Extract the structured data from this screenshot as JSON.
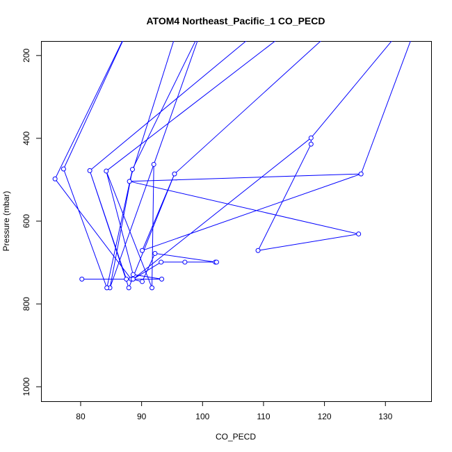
{
  "chart_data": {
    "type": "line",
    "title": "ATOM4 Northeast_Pacific_1 CO_PECD",
    "xlabel": "CO_PECD",
    "ylabel": "Pressure (mbar)",
    "xlim": [
      73.5,
      137.5
    ],
    "ylim": [
      1035,
      165
    ],
    "y_inverted": true,
    "x_ticks": [
      80,
      90,
      100,
      110,
      120,
      130
    ],
    "y_ticks": [
      200,
      400,
      600,
      800,
      1000
    ],
    "grid": false,
    "legend": "none",
    "series_color": "#0000ff",
    "series": [
      {
        "points": [
          [
            75.8,
            498
          ],
          [
            88.3,
            740
          ],
          [
            90.1,
            746
          ],
          [
            92.2,
            678
          ],
          [
            102.1,
            699
          ],
          [
            97.1,
            699
          ],
          [
            102.3,
            699
          ],
          [
            93.2,
            699
          ],
          [
            88.6,
            740
          ],
          [
            117.8,
            399
          ],
          [
            117.8,
            414
          ],
          [
            109.1,
            671
          ],
          [
            125.6,
            631
          ],
          [
            88.0,
            504
          ],
          [
            126.0,
            486
          ],
          [
            90.1,
            671
          ],
          [
            95.4,
            486
          ],
          [
            87.9,
            761
          ],
          [
            81.5,
            478
          ],
          [
            87.5,
            740
          ],
          [
            80.2,
            740
          ],
          [
            93.3,
            740
          ],
          [
            88.6,
            729
          ],
          [
            84.2,
            479
          ],
          [
            91.7,
            761
          ],
          [
            92.0,
            463
          ],
          [
            84.8,
            761
          ],
          [
            88.5,
            475
          ],
          [
            84.3,
            761
          ],
          [
            77.2,
            474
          ]
        ],
        "offscale_segments": [
          [
            [
              75.8,
              498
            ],
            [
              88.0,
              130
            ]
          ],
          [
            [
              77.2,
              474
            ],
            [
              88.0,
              130
            ]
          ],
          [
            [
              81.5,
              478
            ],
            [
              110.0,
              130
            ]
          ],
          [
            [
              84.2,
              479
            ],
            [
              115.0,
              130
            ]
          ],
          [
            [
              88.5,
              475
            ],
            [
              100.0,
              130
            ]
          ],
          [
            [
              92.0,
              463
            ],
            [
              100.0,
              130
            ]
          ],
          [
            [
              88.0,
              504
            ],
            [
              96.0,
              130
            ]
          ],
          [
            [
              95.4,
              486
            ],
            [
              122.0,
              130
            ]
          ],
          [
            [
              117.8,
              399
            ],
            [
              133.0,
              130
            ]
          ],
          [
            [
              126.0,
              486
            ],
            [
              135.0,
              130
            ]
          ]
        ]
      }
    ]
  }
}
